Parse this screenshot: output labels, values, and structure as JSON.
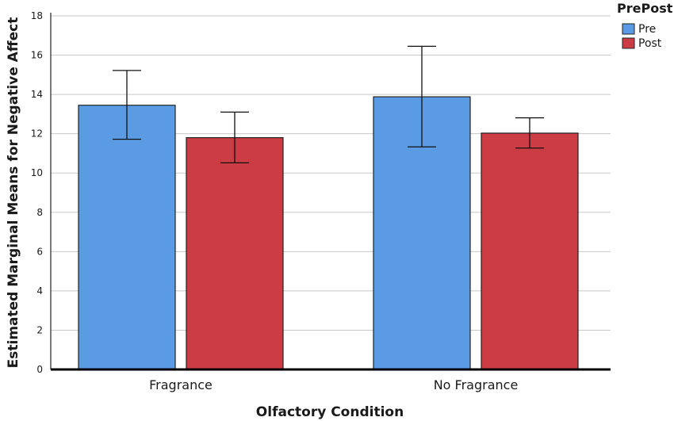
{
  "chart_data": {
    "type": "bar",
    "categories": [
      "Fragrance",
      "No Fragrance"
    ],
    "series": [
      {
        "name": "Pre",
        "color": "#5b9be3",
        "values": [
          13.45,
          13.88
        ],
        "error_low": [
          11.72,
          11.33
        ],
        "error_high": [
          15.22,
          16.45
        ]
      },
      {
        "name": "Post",
        "color": "#cb3c44",
        "values": [
          11.8,
          12.03
        ],
        "error_low": [
          10.52,
          11.27
        ],
        "error_high": [
          13.1,
          12.81
        ]
      }
    ],
    "title": "",
    "xlabel": "Olfactory Condition",
    "ylabel": "Estimated Marginal Means for Negative Affect",
    "ylim": [
      0,
      18
    ],
    "yticks": [
      "0",
      "2",
      "4",
      "6",
      "8",
      "10",
      "12",
      "14",
      "16",
      "18"
    ],
    "grid": true,
    "legend": {
      "title": "PrePost",
      "position": "top-right"
    }
  }
}
